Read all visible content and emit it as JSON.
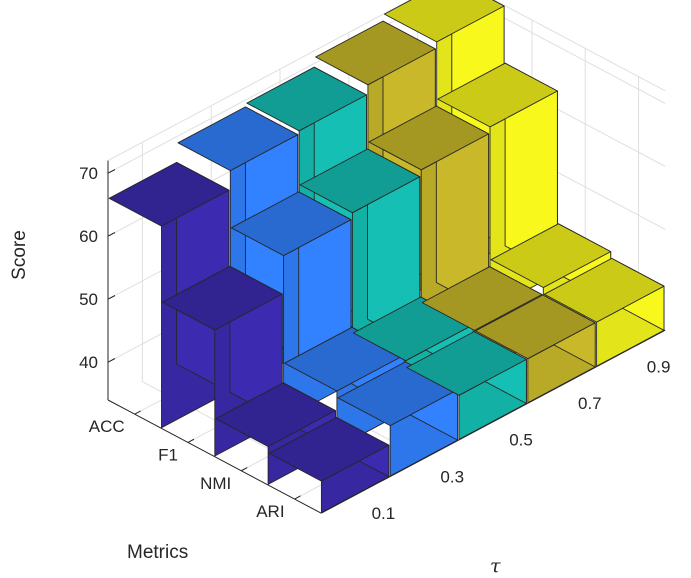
{
  "chart_data": {
    "type": "bar3d",
    "ylabel": "Score",
    "metrics_label": "Metrics",
    "tau_label": "τ",
    "metrics": [
      "ACC",
      "F1",
      "NMI",
      "ARI"
    ],
    "tau": [
      "0.1",
      "0.3",
      "0.5",
      "0.7",
      "0.9"
    ],
    "zlim": [
      34,
      72
    ],
    "zticks": [
      "40",
      "50",
      "60",
      "70"
    ],
    "grid": true,
    "series": [
      {
        "tau": "0.1",
        "color": "#3c2bb0",
        "values": [
          66,
          54,
          40,
          39
        ]
      },
      {
        "tau": "0.3",
        "color": "#3281ff",
        "values": [
          69,
          60,
          43,
          42
        ]
      },
      {
        "tau": "0.5",
        "color": "#15bfb3",
        "values": [
          69.5,
          61,
          42,
          41
        ]
      },
      {
        "tau": "0.7",
        "color": "#c8b82a",
        "values": [
          71,
          62,
          41,
          41
        ]
      },
      {
        "tau": "0.9",
        "color": "#f8f81c",
        "values": [
          72,
          63,
          42,
          41
        ]
      }
    ]
  }
}
